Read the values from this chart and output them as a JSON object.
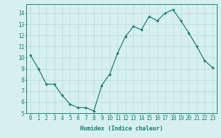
{
  "x": [
    0,
    1,
    2,
    3,
    4,
    5,
    6,
    7,
    8,
    9,
    10,
    11,
    12,
    13,
    14,
    15,
    16,
    17,
    18,
    19,
    20,
    21,
    22,
    23
  ],
  "y": [
    10.2,
    9.0,
    7.6,
    7.6,
    6.6,
    5.8,
    5.5,
    5.5,
    5.2,
    7.5,
    8.5,
    10.4,
    11.9,
    12.8,
    12.5,
    13.7,
    13.3,
    14.0,
    14.3,
    13.3,
    12.2,
    11.0,
    9.7,
    9.1
  ],
  "line_color": "#1a7a6e",
  "marker": "D",
  "marker_size": 1.8,
  "bg_color": "#d6f0f0",
  "grid_color": "#b8d8d8",
  "axis_color": "#1a7a6e",
  "xlabel": "Humidex (Indice chaleur)",
  "xlim": [
    -0.5,
    23.5
  ],
  "ylim": [
    5,
    14.8
  ],
  "yticks": [
    5,
    6,
    7,
    8,
    9,
    10,
    11,
    12,
    13,
    14
  ],
  "xticks": [
    0,
    1,
    2,
    3,
    4,
    5,
    6,
    7,
    8,
    9,
    10,
    11,
    12,
    13,
    14,
    15,
    16,
    17,
    18,
    19,
    20,
    21,
    22,
    23
  ],
  "fontsize_label": 6.0,
  "fontsize_tick": 5.5
}
